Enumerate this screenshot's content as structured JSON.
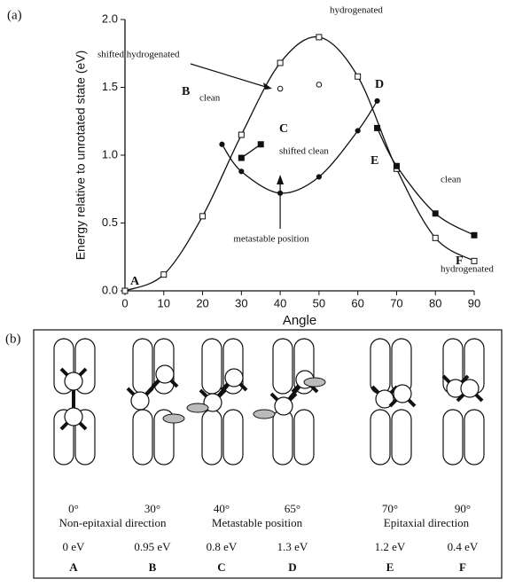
{
  "chart_data": {
    "type": "line",
    "panel_label": "(a)",
    "xlabel": "Angle",
    "ylabel": "Energy relative to unrotated state (eV)",
    "xlim": [
      0,
      90
    ],
    "xticks": [
      0,
      10,
      20,
      30,
      40,
      50,
      60,
      70,
      80,
      90
    ],
    "ylim": [
      0,
      2
    ],
    "yticks": [
      {
        "value": 0,
        "label": "0.0"
      },
      {
        "value": 0.5,
        "label": "0.5"
      },
      {
        "value": 1,
        "label": "1.0"
      },
      {
        "value": 1.5,
        "label": "1.5"
      },
      {
        "value": 2,
        "label": "2.0"
      }
    ],
    "series": [
      {
        "name": "hydrogenated",
        "color": "#111111",
        "marker": "open-square",
        "x": [
          0,
          10,
          20,
          30,
          40,
          50,
          60,
          70,
          80,
          90
        ],
        "values": [
          0,
          0.12,
          0.55,
          1.15,
          1.68,
          1.87,
          1.58,
          0.9,
          0.39,
          0.22
        ]
      },
      {
        "name": "clean",
        "color": "#111111",
        "marker": "filled-square",
        "x": [
          30,
          35
        ],
        "values": [
          0.98,
          1.08
        ]
      },
      {
        "name": "shifted hydrogenated",
        "color": "#111111",
        "marker": "open-circle",
        "x": [
          40,
          50
        ],
        "values": [
          1.49,
          1.52
        ]
      },
      {
        "name": "shifted clean",
        "color": "#111111",
        "marker": "filled-circle",
        "x": [
          25,
          30,
          40,
          50,
          60,
          65
        ],
        "values": [
          1.08,
          0.88,
          0.72,
          0.84,
          1.18,
          1.4
        ]
      },
      {
        "name": "clean",
        "color": "#111111",
        "marker": "filled-square",
        "x": [
          65,
          70,
          80,
          90
        ],
        "values": [
          1.2,
          0.92,
          0.57,
          0.41
        ]
      }
    ],
    "annotations": [
      "A",
      "B",
      "C",
      "D",
      "E",
      "F",
      "metastable position",
      "hydrogenated"
    ]
  },
  "panel_b": {
    "label": "(b)",
    "angles": [
      "0°",
      "30°",
      "40°",
      "65°",
      "70°",
      "90°"
    ],
    "directions": [
      "Non-epitaxial direction",
      "Metastable position",
      "Epitaxial direction"
    ],
    "energies": [
      "0 eV",
      "0.95 eV",
      "0.8 eV",
      "1.3 eV",
      "1.2 eV",
      "0.4 eV"
    ],
    "letters": [
      "A",
      "B",
      "C",
      "D",
      "E",
      "F"
    ]
  }
}
